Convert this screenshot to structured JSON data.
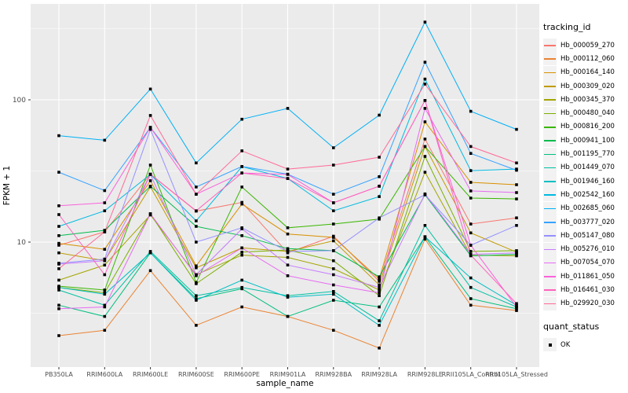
{
  "figure": {
    "background": "#FFFFFF",
    "panel_background": "#EBEBEB",
    "grid_color": "#FFFFFF",
    "tick_label_color": "#4D4D4D",
    "point_color": "#000000"
  },
  "axes": {
    "x_title": "sample_name",
    "y_title": "FPKM + 1",
    "y_tick_labels": [
      "100",
      "10"
    ]
  },
  "legend": {
    "tracking_title": "tracking_id",
    "quant_title": "quant_status",
    "quant_item_label": "OK"
  },
  "chart_data": {
    "type": "line",
    "title": "",
    "xlabel": "sample_name",
    "ylabel": "FPKM + 1",
    "y_scale": "log10",
    "y_major_ticks": [
      10,
      100
    ],
    "y_minor_ticks": [
      3.162,
      31.62,
      316.2
    ],
    "ylim_log10": [
      0.12,
      2.68
    ],
    "grid": true,
    "legend_position": "right",
    "point_shape": "filled-square-black",
    "quant_status": "OK",
    "categories": [
      "PB350LA",
      "RRIM600LA",
      "RRIM600LE",
      "RRIM600SE",
      "RRIM600PE",
      "RRIM901LA",
      "RRIM928BA",
      "RRIM928LA",
      "RRIM928LE",
      "RRII105LA_Control",
      "RRII105LA_Stressed"
    ],
    "series": [
      {
        "name": "Hb_000059_270",
        "color": "#F8766D",
        "values": [
          9.5,
          11.8,
          30,
          16.5,
          19,
          8.4,
          11,
          5.3,
          53,
          13.4,
          14.8
        ]
      },
      {
        "name": "Hb_000112_060",
        "color": "#EA8331",
        "values": [
          2.2,
          2.4,
          6.3,
          2.6,
          3.5,
          3.0,
          2.4,
          1.8,
          10.5,
          3.6,
          3.3
        ]
      },
      {
        "name": "Hb_000164_140",
        "color": "#D89000",
        "values": [
          9.8,
          8.9,
          27,
          6.8,
          18.5,
          11.4,
          10.8,
          5.5,
          70,
          26.3,
          25.3
        ]
      },
      {
        "name": "Hb_000309_020",
        "color": "#C09B00",
        "values": [
          8.4,
          7.4,
          24.5,
          6.6,
          9.1,
          8.6,
          10.2,
          5.0,
          47,
          11.6,
          8.5
        ]
      },
      {
        "name": "Hb_000345_370",
        "color": "#A3A500",
        "values": [
          5.4,
          6.9,
          15.5,
          5.9,
          8.1,
          7.8,
          6.5,
          4.6,
          31,
          8.1,
          8.0
        ]
      },
      {
        "name": "Hb_000480_040",
        "color": "#7CAE00",
        "values": [
          4.8,
          4.4,
          15.8,
          5.1,
          8.5,
          8.8,
          7.4,
          4.2,
          40,
          8.6,
          8.7
        ]
      },
      {
        "name": "Hb_000816_200",
        "color": "#39B600",
        "values": [
          4.9,
          4.6,
          34.8,
          5.2,
          24.4,
          12.6,
          13.4,
          14.5,
          47,
          20.4,
          20.1
        ]
      },
      {
        "name": "Hb_000941_100",
        "color": "#00BB4E",
        "values": [
          11.1,
          12.1,
          24.7,
          12.9,
          11.1,
          9.0,
          8.7,
          5.7,
          21.5,
          8.0,
          8.2
        ]
      },
      {
        "name": "Hb_001195_770",
        "color": "#00BF7D",
        "values": [
          3.6,
          3.0,
          8.4,
          4.0,
          4.7,
          3.0,
          3.9,
          3.5,
          10.9,
          4.0,
          3.4
        ]
      },
      {
        "name": "Hb_001449_070",
        "color": "#00C1A3",
        "values": [
          4.6,
          3.6,
          8.6,
          4.2,
          4.8,
          4.2,
          4.5,
          2.8,
          13.1,
          4.8,
          3.5
        ]
      },
      {
        "name": "Hb_001946_160",
        "color": "#00BFC4",
        "values": [
          4.8,
          4.3,
          8.4,
          3.9,
          5.4,
          4.1,
          4.3,
          2.6,
          10.9,
          5.6,
          3.6
        ]
      },
      {
        "name": "Hb_002542_160",
        "color": "#00BAE0",
        "values": [
          12.9,
          16.6,
          29.9,
          14.1,
          33.9,
          28,
          16.6,
          20.9,
          140,
          31.8,
          32.6
        ]
      },
      {
        "name": "Hb_002685_060",
        "color": "#00B0F6",
        "values": [
          56,
          52,
          119,
          36,
          73,
          87,
          46,
          78,
          352,
          83,
          62
        ]
      },
      {
        "name": "Hb_003777_020",
        "color": "#35A2FF",
        "values": [
          31,
          23,
          64,
          24.4,
          34,
          30,
          21.7,
          28.8,
          184,
          42,
          32
        ]
      },
      {
        "name": "Hb_005147_080",
        "color": "#9590FF",
        "values": [
          7.1,
          7.6,
          62,
          10,
          12.6,
          8.6,
          8.7,
          14.8,
          21.5,
          9.5,
          13.1
        ]
      },
      {
        "name": "Hb_005276_010",
        "color": "#C77CFF",
        "values": [
          7.0,
          7.4,
          29.9,
          5.9,
          12.4,
          6.9,
          5.9,
          4.8,
          21.8,
          8.2,
          8.4
        ]
      },
      {
        "name": "Hb_007054_070",
        "color": "#E76BF3",
        "values": [
          3.4,
          3.5,
          15.8,
          5.8,
          9.1,
          5.8,
          5.0,
          4.4,
          87,
          22.9,
          22.3
        ]
      },
      {
        "name": "Hb_011861_050",
        "color": "#FA62DB",
        "values": [
          18,
          18.9,
          64,
          21.7,
          30.6,
          29.9,
          18.9,
          24.7,
          99,
          9.5,
          3.5
        ]
      },
      {
        "name": "Hb_016461_030",
        "color": "#FF62BC",
        "values": [
          15.6,
          5.9,
          30,
          16.6,
          30.6,
          28,
          18.9,
          24.7,
          99,
          8.1,
          3.7
        ]
      },
      {
        "name": "Hb_029920_030",
        "color": "#FF6A98",
        "values": [
          6.5,
          11.8,
          77.6,
          21.7,
          43.8,
          32.6,
          34.8,
          39.5,
          129,
          47,
          36
        ]
      }
    ]
  }
}
